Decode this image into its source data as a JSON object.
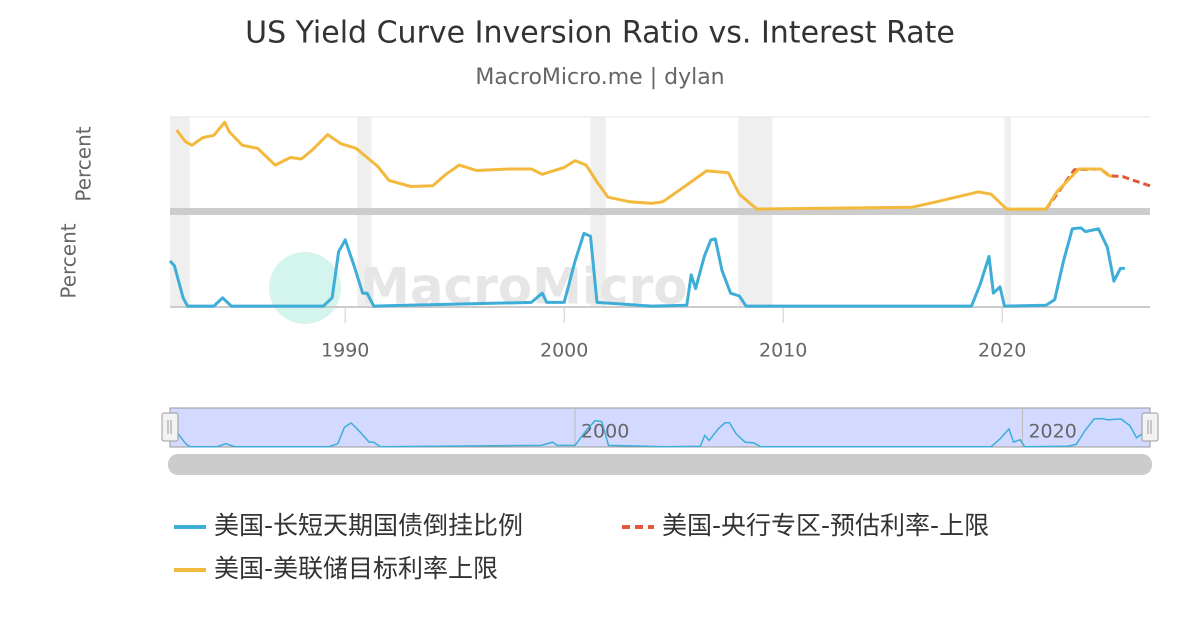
{
  "chart_data": {
    "type": "line",
    "title": "US Yield Curve Inversion Ratio vs. Interest Rate",
    "subtitle": "MacroMicro.me | dylan",
    "watermark": "MacroMicro",
    "xlim": [
      1982,
      2026.75
    ],
    "xticks": [
      1990,
      2000,
      2010,
      2020
    ],
    "recessions": [
      [
        1981.5,
        1982.9
      ],
      [
        1990.55,
        1991.2
      ],
      [
        2001.2,
        2001.9
      ],
      [
        2007.95,
        2009.5
      ],
      [
        2020.1,
        2020.4
      ]
    ],
    "panes": [
      {
        "y_label": "Percent",
        "ylim": [
          0,
          12.3
        ],
        "series": [
          {
            "name": "美国-美联储目标利率上限",
            "color": "#f3b93c",
            "dash": false,
            "x": [
              1982.3,
              1982.7,
              1983.0,
              1983.5,
              1984.0,
              1984.5,
              1984.7,
              1985.3,
              1986.0,
              1986.8,
              1987.5,
              1988.0,
              1988.5,
              1989.2,
              1989.8,
              1990.5,
              1991.0,
              1991.5,
              1992.0,
              1993.0,
              1994.0,
              1994.6,
              1995.2,
              1996.0,
              1997.5,
              1998.5,
              1999.0,
              2000.0,
              2000.5,
              2001.0,
              2001.5,
              2002.0,
              2003.0,
              2004.0,
              2004.5,
              2005.5,
              2006.5,
              2007.5,
              2008.0,
              2008.8,
              2015.9,
              2017.0,
              2018.9,
              2019.5,
              2020.2,
              2022.0,
              2022.5,
              2023.5,
              2024.5,
              2024.8,
              2025.0
            ],
            "values": [
              10.6,
              9.1,
              8.6,
              9.6,
              9.9,
              11.6,
              10.4,
              8.6,
              8.2,
              6.0,
              7.0,
              6.8,
              8.0,
              10.0,
              8.8,
              8.2,
              7.0,
              5.8,
              4.0,
              3.2,
              3.3,
              4.8,
              6.0,
              5.3,
              5.5,
              5.5,
              4.8,
              5.7,
              6.6,
              6.0,
              3.8,
              1.8,
              1.2,
              1.0,
              1.2,
              3.2,
              5.25,
              5.0,
              2.2,
              0.25,
              0.5,
              1.2,
              2.5,
              2.2,
              0.25,
              0.25,
              2.5,
              5.5,
              5.5,
              4.75,
              4.5
            ]
          },
          {
            "name": "美国-央行专区-预估利率-上限",
            "color": "#e05a3a",
            "dash": true,
            "x": [
              2022.0,
              2022.5,
              2023.3,
              2024.5,
              2024.9,
              2025.5,
              2026.0,
              2026.75
            ],
            "values": [
              0.25,
              2.2,
              5.4,
              5.5,
              4.6,
              4.5,
              4.0,
              3.3
            ]
          }
        ]
      },
      {
        "y_label": "Percent",
        "ylim": [
          0,
          100
        ],
        "series": [
          {
            "name": "美国-长短天期国债倒挂比例",
            "color": "#3eaed8",
            "dash": false,
            "x": [
              1982.0,
              1982.2,
              1982.6,
              1982.8,
              1984.0,
              1984.4,
              1984.8,
              1989.0,
              1989.4,
              1989.7,
              1990.0,
              1990.4,
              1990.8,
              1991.0,
              1991.3,
              1998.5,
              1999.0,
              1999.2,
              2000.0,
              2000.5,
              2000.9,
              2001.2,
              2001.5,
              2004.0,
              2005.6,
              2005.8,
              2006.0,
              2006.4,
              2006.7,
              2006.9,
              2007.2,
              2007.6,
              2008.0,
              2008.3,
              2018.6,
              2019.0,
              2019.4,
              2019.6,
              2019.9,
              2020.1,
              2022.0,
              2022.4,
              2022.8,
              2023.2,
              2023.6,
              2023.8,
              2024.4,
              2024.8,
              2025.1,
              2025.4,
              2025.6
            ],
            "values": [
              50,
              45,
              10,
              1,
              1,
              10,
              1,
              1,
              10,
              60,
              73,
              45,
              15,
              15,
              1,
              5,
              15,
              5,
              5,
              50,
              80,
              77,
              5,
              1,
              2,
              35,
              20,
              55,
              73,
              74,
              40,
              15,
              12,
              1,
              1,
              25,
              55,
              15,
              22,
              1,
              2,
              8,
              50,
              85,
              86,
              82,
              85,
              65,
              28,
              42,
              42
            ]
          }
        ]
      }
    ],
    "navigator": {
      "xlim": [
        1981.9,
        2025.7
      ],
      "xticks": [
        2000,
        2020
      ]
    }
  }
}
